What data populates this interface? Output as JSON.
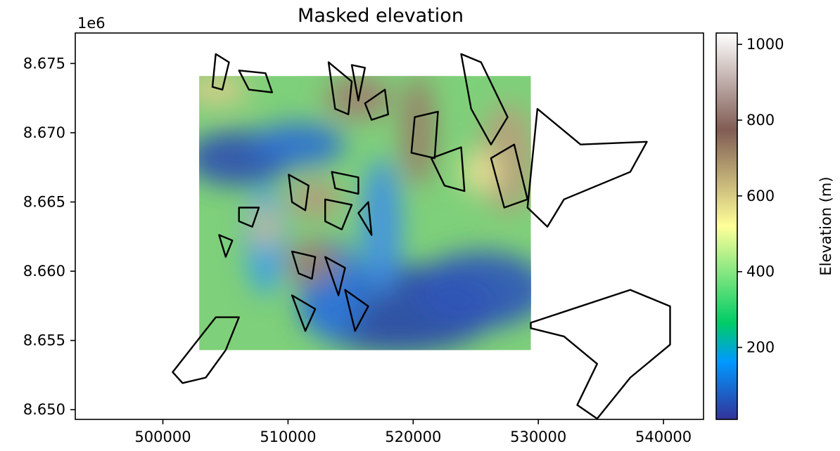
{
  "chart_data": {
    "type": "heatmap",
    "title": "Masked elevation",
    "xlabel": "",
    "ylabel": "",
    "y_offset_label": "1e6",
    "xlim": [
      493000,
      543200
    ],
    "ylim": [
      8649300,
      8677200
    ],
    "x_ticks": [
      500000,
      510000,
      520000,
      530000,
      540000
    ],
    "x_tick_labels": [
      "500000",
      "510000",
      "520000",
      "530000",
      "540000"
    ],
    "y_ticks": [
      8650000,
      8655000,
      8660000,
      8665000,
      8670000,
      8675000
    ],
    "y_tick_labels": [
      "8.650",
      "8.655",
      "8.660",
      "8.665",
      "8.670",
      "8.675"
    ],
    "raster_extent": {
      "x": [
        502900,
        529400
      ],
      "y": [
        8654300,
        8674100
      ]
    },
    "colormap": "terrain",
    "colorbar": {
      "label": "Elevation (m)",
      "range": [
        10,
        1030
      ],
      "ticks": [
        200,
        400,
        600,
        800,
        1000
      ],
      "tick_labels": [
        "200",
        "400",
        "600",
        "800",
        "1000"
      ]
    },
    "outline_color": "#000000",
    "grid": false,
    "legend": "none"
  }
}
